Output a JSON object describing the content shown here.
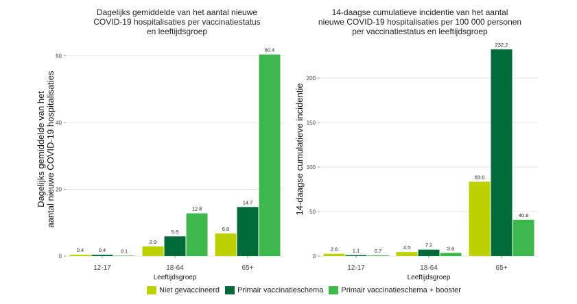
{
  "chart_data": [
    {
      "type": "bar",
      "title_lines": [
        "Dagelijks gemiddelde van het aantal nieuwe",
        "COVID-19 hospitalisaties per vaccinatiestatus",
        "en leeftijdsgroep"
      ],
      "ylabel_lines": [
        "Dagelijks gemiddelde van het",
        "aantal nieuwe COVID-19 hospitalisaties"
      ],
      "xlabel": "Leeftijdsgroep",
      "categories": [
        "12-17",
        "18-64",
        "65+"
      ],
      "ylim": [
        0,
        64
      ],
      "yticks": [
        0,
        20,
        40,
        60
      ],
      "ytick_labels": [
        "0",
        "20",
        "40",
        "60"
      ],
      "series": [
        {
          "name": "Niet gevaccineerd",
          "values": [
            0.4,
            2.9,
            6.8
          ],
          "labels": [
            "0.4",
            "2.9",
            "6.8"
          ]
        },
        {
          "name": "Primair vaccinatieschema",
          "values": [
            0.4,
            5.9,
            14.7
          ],
          "labels": [
            "0.4",
            "5.9",
            "14.7"
          ]
        },
        {
          "name": "Primair vaccinatieschema + booster",
          "values": [
            0.1,
            12.8,
            60.4
          ],
          "labels": [
            "0.1",
            "12.8",
            "60.4"
          ]
        }
      ],
      "grid": true
    },
    {
      "type": "bar",
      "title_lines": [
        "14-daagse cumulatieve incidentie van het aantal",
        "nieuwe COVID-19 hospitalisaties per 100 000 personen",
        "per vaccinatiestatus en leeftijdsgroep"
      ],
      "ylabel_lines": [
        "14-daagse cumulatieve incidentie"
      ],
      "xlabel": "Leeftijdsgroep",
      "categories": [
        "12-17",
        "18-64",
        "65+"
      ],
      "ylim": [
        0,
        240
      ],
      "yticks": [
        0,
        50,
        100,
        150,
        200
      ],
      "ytick_labels": [
        "0",
        "50",
        "100",
        "150",
        "200"
      ],
      "series": [
        {
          "name": "Niet gevaccineerd",
          "values": [
            2.6,
            4.5,
            83.6
          ],
          "labels": [
            "2.6",
            "4.5",
            "83.6"
          ]
        },
        {
          "name": "Primair vaccinatieschema",
          "values": [
            1.1,
            7.2,
            232.2
          ],
          "labels": [
            "1.1",
            "7.2",
            "232.2"
          ]
        },
        {
          "name": "Primair vaccinatieschema + booster",
          "values": [
            0.7,
            3.6,
            40.8
          ],
          "labels": [
            "0.7",
            "3.6",
            "40.8"
          ]
        }
      ],
      "grid": true
    }
  ],
  "legend": {
    "items": [
      {
        "label": "Niet gevaccineerd",
        "color": "#bdd100"
      },
      {
        "label": "Primair vaccinatieschema",
        "color": "#006b38"
      },
      {
        "label": "Primair vaccinatieschema + booster",
        "color": "#3db84a"
      }
    ],
    "placement": "bottom"
  }
}
